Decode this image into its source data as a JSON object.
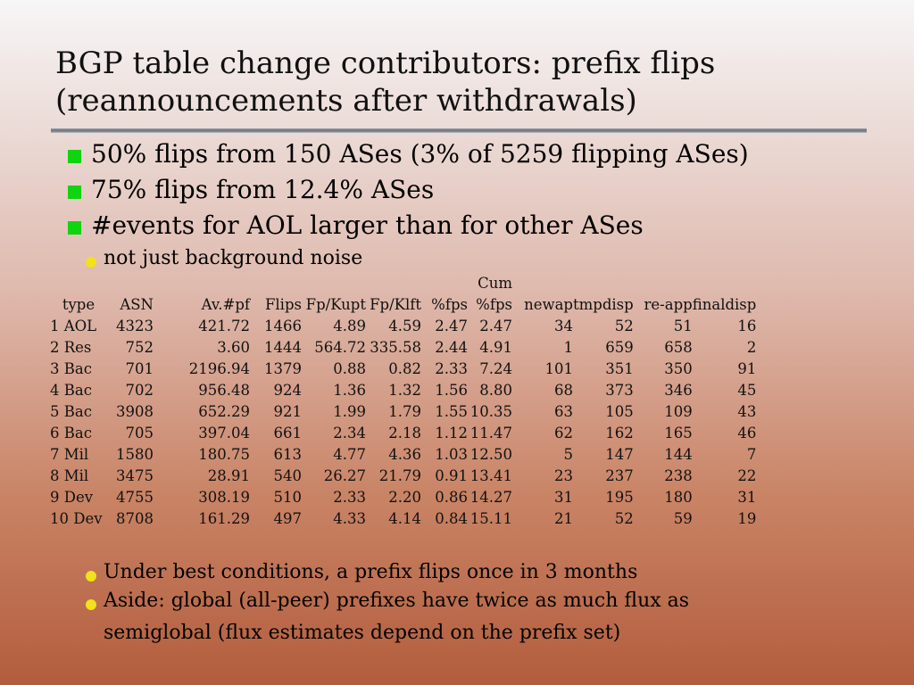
{
  "title": {
    "line1": "BGP table change contributors: prefix flips",
    "line2": "(reannouncements after withdrawals)"
  },
  "bullets": [
    "50% flips from 150 ASes (3% of 5259 flipping ASes)",
    "75% flips from 12.4% ASes",
    "#events for AOL larger than for other ASes"
  ],
  "sub_bullets_top": [
    "not just background noise"
  ],
  "table": {
    "header_top": {
      "cum": "Cum"
    },
    "headers": [
      "type",
      "ASN",
      "Av.#pf",
      "Flips",
      "Fp/Kupt",
      "Fp/Klft",
      "%fps",
      "%fps",
      "newap",
      "tmpdisp",
      "re-app",
      "finaldisp"
    ],
    "rows": [
      [
        "1 AOL",
        "4323",
        "421.72",
        "1466",
        "4.89",
        "4.59",
        "2.47",
        "2.47",
        "34",
        "52",
        "51",
        "16"
      ],
      [
        "2 Res",
        "752",
        "3.60",
        "1444",
        "564.72",
        "335.58",
        "2.44",
        "4.91",
        "1",
        "659",
        "658",
        "2"
      ],
      [
        "3 Bac",
        "701",
        "2196.94",
        "1379",
        "0.88",
        "0.82",
        "2.33",
        "7.24",
        "101",
        "351",
        "350",
        "91"
      ],
      [
        "4 Bac",
        "702",
        "956.48",
        "924",
        "1.36",
        "1.32",
        "1.56",
        "8.80",
        "68",
        "373",
        "346",
        "45"
      ],
      [
        "5 Bac",
        "3908",
        "652.29",
        "921",
        "1.99",
        "1.79",
        "1.55",
        "10.35",
        "63",
        "105",
        "109",
        "43"
      ],
      [
        "6 Bac",
        "705",
        "397.04",
        "661",
        "2.34",
        "2.18",
        "1.12",
        "11.47",
        "62",
        "162",
        "165",
        "46"
      ],
      [
        "7 Mil",
        "1580",
        "180.75",
        "613",
        "4.77",
        "4.36",
        "1.03",
        "12.50",
        "5",
        "147",
        "144",
        "7"
      ],
      [
        "8 Mil",
        "3475",
        "28.91",
        "540",
        "26.27",
        "21.79",
        "0.91",
        "13.41",
        "23",
        "237",
        "238",
        "22"
      ],
      [
        "9 Dev",
        "4755",
        "308.19",
        "510",
        "2.33",
        "2.20",
        "0.86",
        "14.27",
        "31",
        "195",
        "180",
        "31"
      ],
      [
        "10 Dev",
        "8708",
        "161.29",
        "497",
        "4.33",
        "4.14",
        "0.84",
        "15.11",
        "21",
        "52",
        "59",
        "19"
      ]
    ]
  },
  "sub_bullets_bottom": [
    {
      "line1": "Under best conditions, a prefix flips once in 3 months"
    },
    {
      "line1": "Aside: global (all-peer) prefixes have twice as much flux as",
      "line2": "semiglobal (flux estimates depend on the prefix set)"
    }
  ],
  "colors": {
    "bullet_square": "#11d411",
    "sub_bullet_dot": "#f1e21a",
    "rule": "#6b6f76"
  }
}
